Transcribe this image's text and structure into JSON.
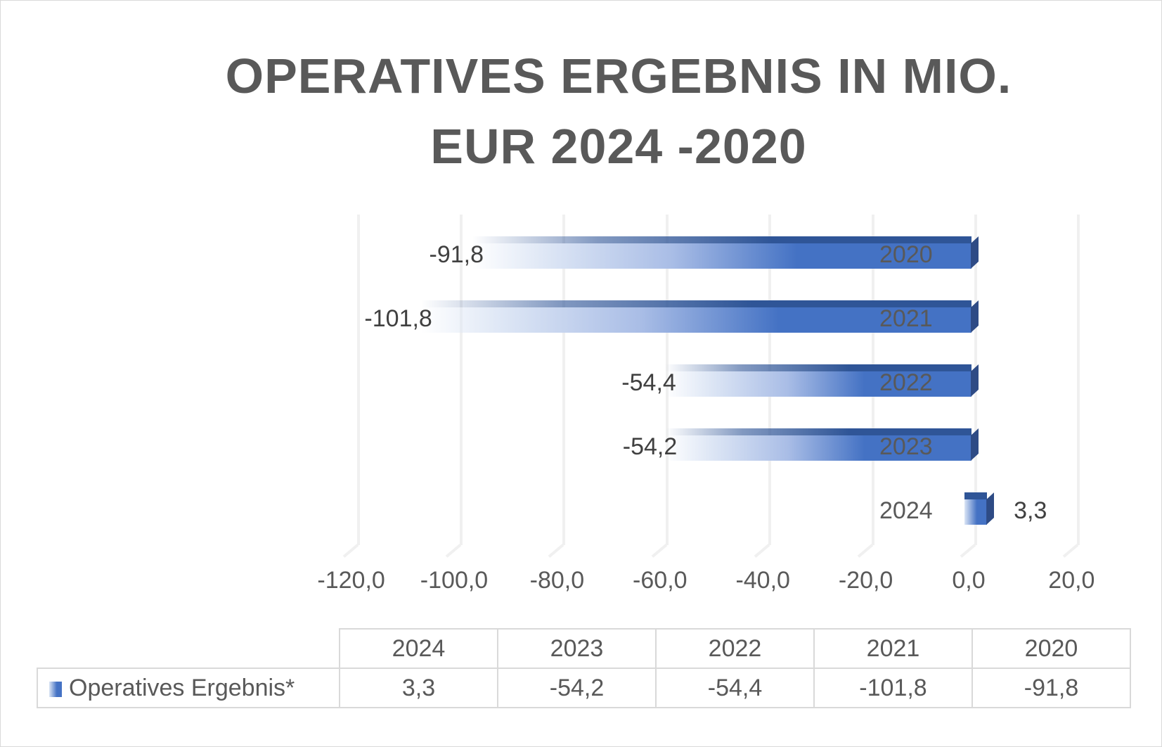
{
  "title": "OPERATIVES ERGEBNIS IN MIO. EUR 2024 -2020",
  "title_lines": [
    "OPERATIVES ERGEBNIS IN MIO.",
    "EUR 2024 -2020"
  ],
  "x_axis": {
    "ticks": [
      "-120,0",
      "-100,0",
      "-80,0",
      "-60,0",
      "-40,0",
      "-20,0",
      "0,0",
      "20,0"
    ]
  },
  "bars": [
    {
      "category": "2020",
      "value": -91.8,
      "label": "-91,8"
    },
    {
      "category": "2021",
      "value": -101.8,
      "label": "-101,8"
    },
    {
      "category": "2022",
      "value": -54.4,
      "label": "-54,4"
    },
    {
      "category": "2023",
      "value": -54.2,
      "label": "-54,2"
    },
    {
      "category": "2024",
      "value": 3.3,
      "label": "3,3"
    }
  ],
  "data_table": {
    "headers": [
      "2024",
      "2023",
      "2022",
      "2021",
      "2020"
    ],
    "series_name": "Operatives Ergebnis*",
    "values": [
      "3,3",
      "-54,2",
      "-54,4",
      "-101,8",
      "-91,8"
    ]
  },
  "colors": {
    "bar": "#4472c4",
    "bar_dark": "#2f5597",
    "text": "#595959",
    "grid": "#f0f0f0"
  },
  "chart_data": {
    "type": "bar",
    "orientation": "horizontal",
    "title": "OPERATIVES ERGEBNIS IN MIO. EUR 2024 -2020",
    "categories": [
      "2024",
      "2023",
      "2022",
      "2021",
      "2020"
    ],
    "series": [
      {
        "name": "Operatives Ergebnis*",
        "values": [
          3.3,
          -54.2,
          -54.4,
          -101.8,
          -91.8
        ]
      }
    ],
    "xlabel": "",
    "ylabel": "",
    "xlim": [
      -120,
      20
    ],
    "x_ticks": [
      -120,
      -100,
      -80,
      -60,
      -40,
      -20,
      0,
      20
    ],
    "grid": true,
    "legend_position": "data-table",
    "data_table": true
  }
}
